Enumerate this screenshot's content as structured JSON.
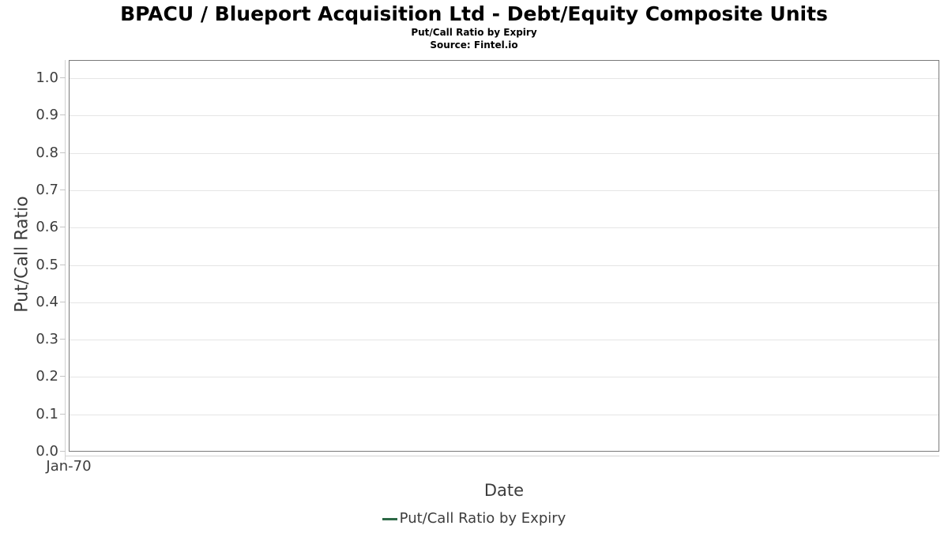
{
  "header": {
    "title": "BPACU / Blueport Acquisition Ltd - Debt/Equity Composite Units",
    "subtitle": "Put/Call Ratio by Expiry",
    "source": "Source: Fintel.io"
  },
  "chart_data": {
    "type": "line",
    "title": "BPACU / Blueport Acquisition Ltd - Debt/Equity Composite Units",
    "subtitle": "Put/Call Ratio by Expiry",
    "source": "Source: Fintel.io",
    "xlabel": "Date",
    "ylabel": "Put/Call Ratio",
    "ylim": [
      0.0,
      1.05
    ],
    "yticks": [
      "0.0",
      "0.1",
      "0.2",
      "0.3",
      "0.4",
      "0.5",
      "0.6",
      "0.7",
      "0.8",
      "0.9",
      "1.0"
    ],
    "xticks": [
      "Jan-70"
    ],
    "grid": "horizontal",
    "legend_position": "bottom-center",
    "series": [
      {
        "name": "Put/Call Ratio by Expiry",
        "color": "#2d6946",
        "x": [],
        "values": []
      }
    ]
  },
  "colors": {
    "plot_border": "#7a7a7a",
    "gridline": "#e5e5e5",
    "tick_text": "#3d3d3d",
    "title_text": "#000000",
    "legend_marker": "#2d6946"
  }
}
